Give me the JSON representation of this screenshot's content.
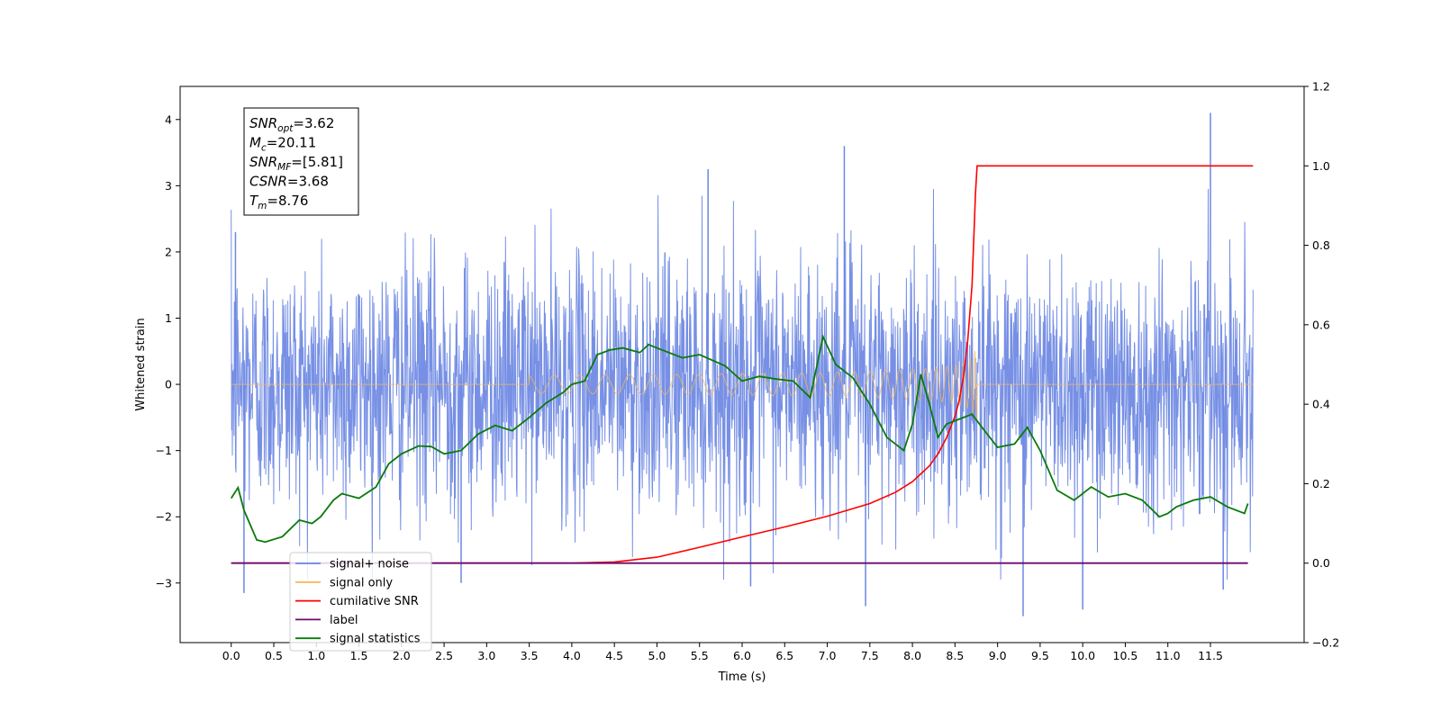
{
  "chart_data": {
    "type": "line",
    "xlabel": "Time (s)",
    "ylabel": "Whitened strain",
    "xlim": [
      -0.6,
      12.6
    ],
    "ylim": [
      -3.9,
      4.5
    ],
    "y2lim": [
      -0.2,
      1.2
    ],
    "xticks": [
      "0.0",
      "0.5",
      "1.0",
      "1.5",
      "2.0",
      "2.5",
      "3.0",
      "3.5",
      "4.0",
      "4.5",
      "5.0",
      "5.5",
      "6.0",
      "6.5",
      "7.0",
      "7.5",
      "8.0",
      "8.5",
      "9.0",
      "9.5",
      "10.0",
      "10.5",
      "11.0",
      "11.5"
    ],
    "yticks": [
      "−3",
      "−2",
      "−1",
      "0",
      "1",
      "2",
      "3",
      "4"
    ],
    "y2ticks": [
      "−0.2",
      "0.0",
      "0.2",
      "0.4",
      "0.6",
      "0.8",
      "1.0",
      "1.2"
    ],
    "grid": false,
    "legend_position": "lower-left",
    "colors": {
      "signal_noise": "#6b87e3",
      "signal_only": "#f5b85a",
      "cumulative_snr": "#ff0000",
      "label": "#6a0a6e",
      "statistics": "#0a7a0a"
    },
    "annotation_box": {
      "lines": [
        {
          "sym": "SNR",
          "sub": "opt",
          "val": "=3.62"
        },
        {
          "sym": "M",
          "sub": "c",
          "val": "=20.11"
        },
        {
          "sym": "SNR",
          "sub": "MF",
          "val": "=[5.81]"
        },
        {
          "sym": "CSNR",
          "sub": "",
          "val": "=3.68"
        },
        {
          "sym": "T",
          "sub": "m",
          "val": "=8.76"
        }
      ]
    },
    "series": [
      {
        "name": "signal+ noise",
        "axis": "left",
        "kind": "noise",
        "x_range": [
          0.0,
          12.0
        ],
        "envelope": 1.3,
        "extremes": [
          {
            "x": 7.2,
            "y": 3.6
          },
          {
            "x": 11.5,
            "y": 4.1
          },
          {
            "x": 9.3,
            "y": -3.5
          },
          {
            "x": 10.0,
            "y": -3.4
          },
          {
            "x": 7.45,
            "y": -3.35
          },
          {
            "x": 0.15,
            "y": -3.15
          },
          {
            "x": 6.1,
            "y": -3.05
          },
          {
            "x": 2.7,
            "y": -3.0
          },
          {
            "x": 5.6,
            "y": 3.25
          },
          {
            "x": 11.65,
            "y": -3.1
          },
          {
            "x": 0.05,
            "y": 2.3
          }
        ]
      },
      {
        "name": "signal only",
        "axis": "left",
        "kind": "chirp",
        "t_merger": 8.76,
        "x_range": [
          0.0,
          12.0
        ],
        "peak": 0.62
      },
      {
        "name": "cumilative SNR",
        "axis": "right",
        "x": [
          0.0,
          3.5,
          4.0,
          4.5,
          5.0,
          5.5,
          6.0,
          6.5,
          7.0,
          7.5,
          7.8,
          8.0,
          8.2,
          8.3,
          8.4,
          8.5,
          8.55,
          8.6,
          8.65,
          8.7,
          8.74,
          8.76,
          8.9,
          10.0,
          11.0,
          12.0
        ],
        "values": [
          0.0,
          0.0,
          0.0,
          0.003,
          0.015,
          0.04,
          0.066,
          0.091,
          0.118,
          0.15,
          0.178,
          0.205,
          0.245,
          0.275,
          0.315,
          0.37,
          0.41,
          0.47,
          0.56,
          0.7,
          0.93,
          1.0,
          1.0,
          1.0,
          1.0,
          1.0
        ]
      },
      {
        "name": "label",
        "axis": "right",
        "x": [
          0.0,
          11.94
        ],
        "values": [
          0.0,
          0.0
        ]
      },
      {
        "name": "signal statistics",
        "axis": "left",
        "x": [
          0.0,
          0.08,
          0.15,
          0.3,
          0.4,
          0.6,
          0.8,
          0.95,
          1.05,
          1.2,
          1.3,
          1.5,
          1.7,
          1.85,
          2.0,
          2.2,
          2.35,
          2.5,
          2.7,
          2.9,
          3.1,
          3.3,
          3.5,
          3.7,
          3.9,
          4.0,
          4.15,
          4.3,
          4.45,
          4.6,
          4.8,
          4.9,
          5.1,
          5.3,
          5.5,
          5.8,
          6.0,
          6.2,
          6.4,
          6.6,
          6.8,
          6.95,
          7.1,
          7.3,
          7.5,
          7.7,
          7.8,
          7.9,
          8.0,
          8.1,
          8.2,
          8.3,
          8.4,
          8.5,
          8.6,
          8.7,
          8.8,
          9.0,
          9.2,
          9.35,
          9.5,
          9.7,
          9.9,
          10.1,
          10.3,
          10.5,
          10.7,
          10.9,
          11.0,
          11.1,
          11.3,
          11.5,
          11.7,
          11.9,
          11.94
        ],
        "values": [
          -1.72,
          -1.56,
          -1.9,
          -2.35,
          -2.38,
          -2.3,
          -2.05,
          -2.1,
          -2.0,
          -1.75,
          -1.65,
          -1.72,
          -1.55,
          -1.2,
          -1.05,
          -0.93,
          -0.94,
          -1.05,
          -1.0,
          -0.75,
          -0.62,
          -0.7,
          -0.5,
          -0.28,
          -0.12,
          0.0,
          0.05,
          0.45,
          0.52,
          0.55,
          0.48,
          0.6,
          0.5,
          0.4,
          0.45,
          0.28,
          0.05,
          0.12,
          0.08,
          0.05,
          -0.2,
          0.72,
          0.3,
          0.1,
          -0.3,
          -0.8,
          -0.9,
          -1.0,
          -0.6,
          0.15,
          -0.3,
          -0.8,
          -0.6,
          -0.55,
          -0.5,
          -0.45,
          -0.62,
          -0.95,
          -0.9,
          -0.65,
          -1.0,
          -1.6,
          -1.75,
          -1.55,
          -1.7,
          -1.65,
          -1.75,
          -2.0,
          -1.95,
          -1.85,
          -1.75,
          -1.7,
          -1.85,
          -1.95,
          -1.8
        ]
      }
    ]
  }
}
